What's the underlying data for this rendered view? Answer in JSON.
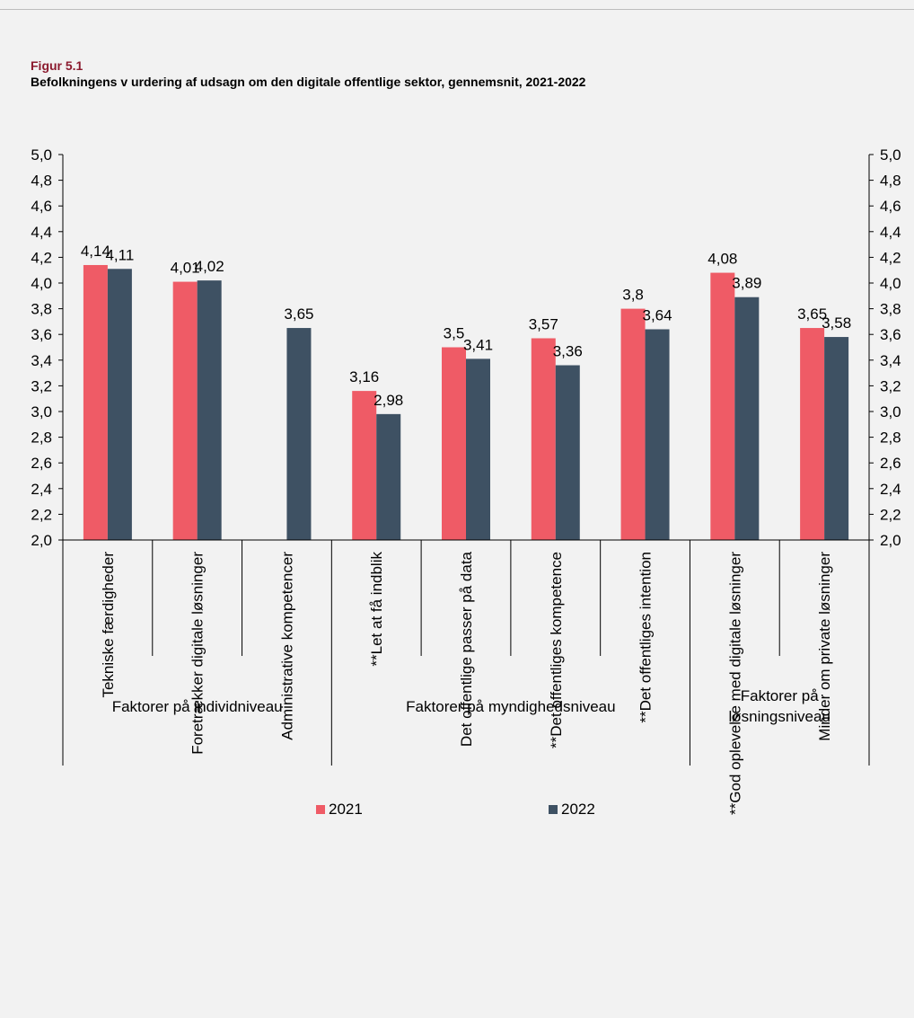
{
  "figure": {
    "label": "Figur 5.1",
    "title": "Befolkningens v urdering af udsagn om den digitale offentlige sektor, gennemsnit, 2021-2022"
  },
  "colors": {
    "series_2021": "#ef5b66",
    "series_2022": "#3e5163",
    "axis": "#000000"
  },
  "chart_data": {
    "type": "bar",
    "categories": [
      "Tekniske færdigheder",
      "Foretrækker digitale løsninger",
      "Administrative kompetencer",
      "**Let at få indblik",
      "Det offentlige passer på data",
      "**Det offentliges kompetence",
      "**Det offentliges intention",
      "**God oplevelse med digitale løsninger",
      "Minder om private løsninger"
    ],
    "groups": [
      {
        "label_lines": [
          "Faktorer på individniveau"
        ],
        "start": 0,
        "end": 2
      },
      {
        "label_lines": [
          "Faktorer på myndighedsniveau"
        ],
        "start": 3,
        "end": 6
      },
      {
        "label_lines": [
          "Faktorer på",
          "løsningsniveau"
        ],
        "start": 7,
        "end": 8
      }
    ],
    "series": [
      {
        "name": "2021",
        "values": [
          4.14,
          4.01,
          null,
          3.16,
          3.5,
          3.57,
          3.8,
          4.08,
          3.65
        ],
        "labels": [
          "4,14",
          "4,01",
          "",
          "3,16",
          "3,5",
          "3,57",
          "3,8",
          "4,08",
          "3,65"
        ]
      },
      {
        "name": "2022",
        "values": [
          4.11,
          4.02,
          3.65,
          2.98,
          3.41,
          3.36,
          3.64,
          3.89,
          3.58
        ],
        "labels": [
          "4,11",
          "4,02",
          "3,65",
          "2,98",
          "3,41",
          "3,36",
          "3,64",
          "3,89",
          "3,58"
        ]
      }
    ],
    "ylim": [
      2.0,
      5.0
    ],
    "yticks": [
      "2,0",
      "2,2",
      "2,4",
      "2,6",
      "2,8",
      "3,0",
      "3,2",
      "3,4",
      "3,6",
      "3,8",
      "4,0",
      "4,2",
      "4,4",
      "4,6",
      "4,8",
      "5,0"
    ],
    "grid": false,
    "legend": "bottom-center"
  }
}
